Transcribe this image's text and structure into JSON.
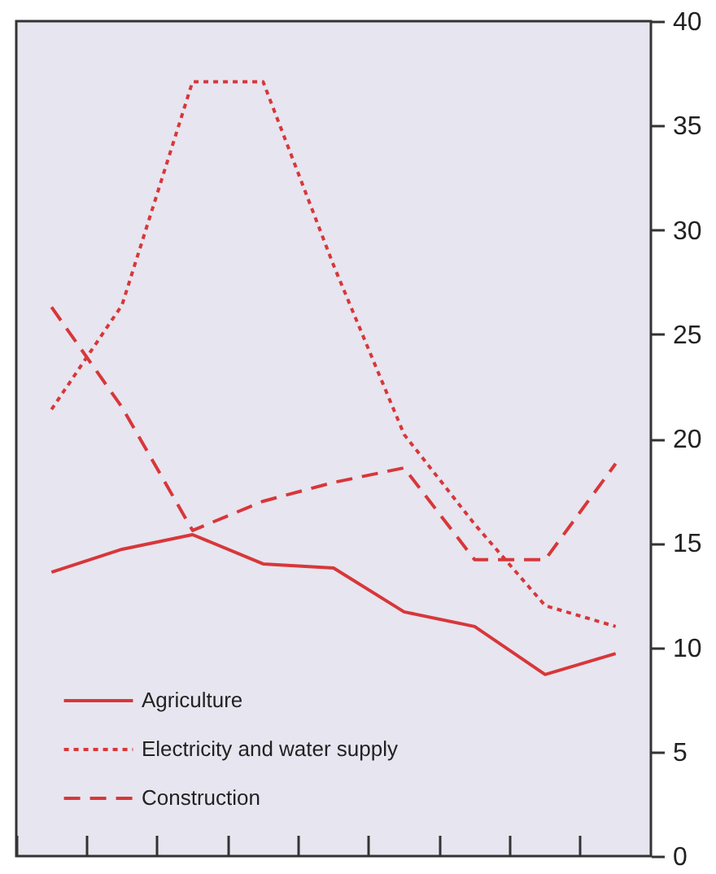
{
  "chart_data": {
    "type": "line",
    "categories": [
      null,
      null,
      null,
      null,
      null,
      null,
      null,
      null,
      null
    ],
    "ylim": [
      0,
      40
    ],
    "yticks": [
      0,
      5,
      10,
      15,
      20,
      25,
      30,
      35,
      40
    ],
    "legend": "bottom left",
    "grid": false,
    "series": [
      {
        "name": "Agriculture",
        "color": "#d7373a",
        "line_style": "solid",
        "values": [
          13.6,
          14.7,
          15.4,
          14.0,
          13.8,
          11.7,
          11.0,
          8.7,
          9.7
        ]
      },
      {
        "name": "Electricity and water supply",
        "color": "#d7373a",
        "line_style": "dotted",
        "values": [
          21.4,
          26.4,
          37.1,
          37.1,
          28.3,
          20.2,
          15.9,
          12.0,
          11.0
        ]
      },
      {
        "name": "Construction",
        "color": "#d7373a",
        "line_style": "dashed",
        "values": [
          26.3,
          21.5,
          15.6,
          17.0,
          17.9,
          18.6,
          14.2,
          14.2,
          18.8
        ]
      }
    ]
  }
}
